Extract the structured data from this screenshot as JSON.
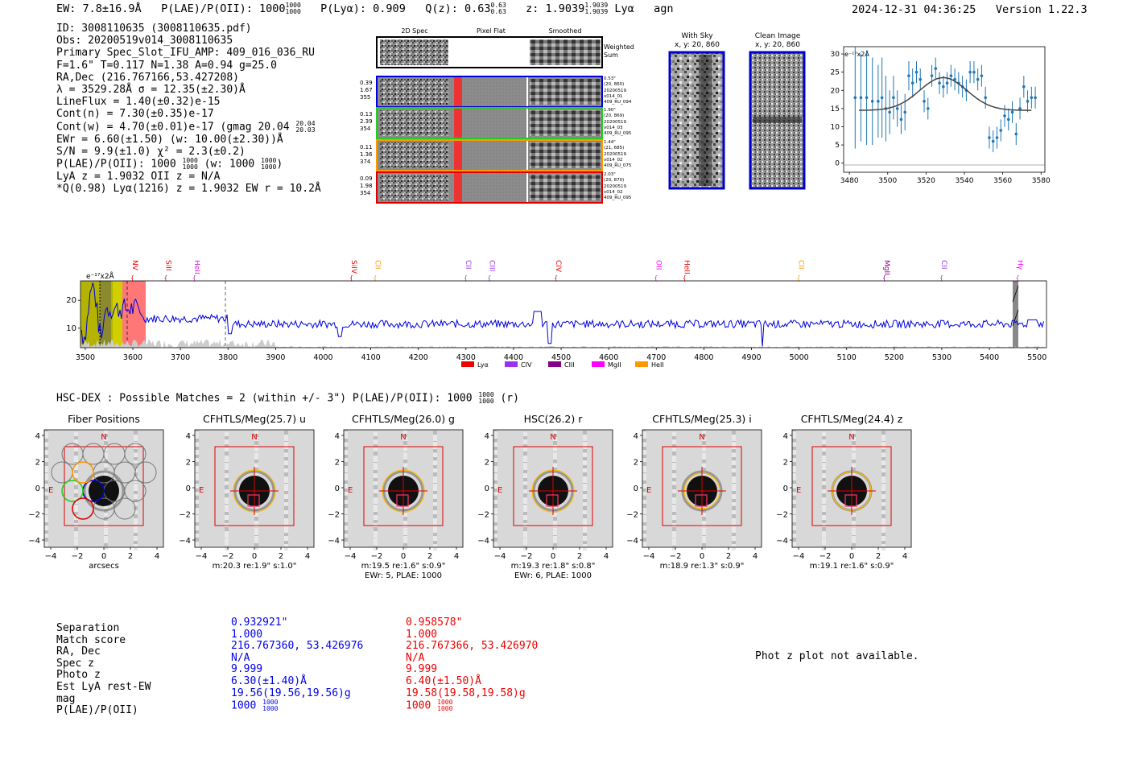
{
  "header": {
    "ew": "EW: 7.8±16.9Å",
    "plae_label": "P(LAE)/P(OII): 1000",
    "plae_hi": "1000",
    "plae_lo": "1000",
    "plya": "P(Lyα): 0.909",
    "qz": "Q(z): 0.63",
    "qz_hi": "0.63",
    "qz_lo": "0.63",
    "z": "z: 1.9039",
    "z_hi": "1.9039",
    "z_lo": "1.9039",
    "line": "Lyα",
    "cls": "agn",
    "timestamp": "2024-12-31 04:36:25",
    "version": "Version 1.22.3"
  },
  "info": {
    "id": "ID: 3008110635 (3008110635.pdf)",
    "obs": "Obs: 20200519v014_3008110635",
    "primary": "Primary Spec_Slot_IFU_AMP: 409_016_036_RU",
    "fparams": "F=1.6\"  T=0.117  N=1.38  A=0.94  g=25.0",
    "radec": "RA,Dec (216.767166,53.427208)",
    "lambda": "λ = 3529.28Å   σ = 12.35(±2.30)Å",
    "lineflux": "LineFlux = 1.40(±0.32)e-15",
    "contn": "Cont(n) = 7.30(±0.35)e-17",
    "contw": "Cont(w) = 4.70(±0.01)e-17 (gmag 20.04",
    "contw_hi": "20.04",
    "contw_lo": "20.03",
    "ewr": "EWr = 6.60(±1.50) (w: 10.00(±2.30))Å",
    "sn": "S/N = 9.9(±1.0)  χ² = 2.3(±0.2)",
    "plae": "P(LAE)/P(OII): 1000",
    "plae_hi": "1000",
    "plae_lo": "1000",
    "plae_w": "(w: 1000",
    "plae_w_hi": "1000",
    "plae_w_lo": "1000",
    "lya_z": "LyA z = 1.9032   OII z = N/A",
    "q_line": "*Q(0.98) Lyα(1216) z = 1.9032   EW r = 10.2Å"
  },
  "cutouts": {
    "col_2d": "2D Spec",
    "col_flat": "Pixel Flat",
    "col_smooth": "Smoothed",
    "weighted": "Weighted",
    "sum": "Sum",
    "rows": [
      {
        "left": [
          "0.39",
          "1.67",
          "355"
        ],
        "right": [
          "0.53\"",
          "(20, 860)",
          "20200519",
          "v014_01",
          "409_RU_094"
        ],
        "color": "#0000dd"
      },
      {
        "left": [
          "0.13",
          "2.39",
          "354"
        ],
        "right": [
          "1.90\"",
          "(20, 869)",
          "20200519",
          "v014_03",
          "409_RU_095"
        ],
        "color": "#22cc22"
      },
      {
        "left": [
          "0.11",
          "1.36",
          "374"
        ],
        "right": [
          "1.44\"",
          "(21, 685)",
          "20200519",
          "v014_02",
          "409_RU_075"
        ],
        "color": "#ff9900"
      },
      {
        "left": [
          "0.09",
          "1.98",
          "354"
        ],
        "right": [
          "2.03\"",
          "(20, 870)",
          "20200519",
          "v014_02",
          "409_RU_095"
        ],
        "color": "#dd0000"
      }
    ]
  },
  "sky": {
    "with_sky": "With Sky",
    "with_sky_xy": "x, y: 20, 860",
    "clean": "Clean Image",
    "clean_xy": "x, y: 20, 860"
  },
  "fit_plot": {
    "unit": "e⁻¹⁷x2Å",
    "xticks": [
      "3480",
      "3500",
      "3520",
      "3540",
      "3560",
      "3580"
    ],
    "yticks": [
      "0",
      "5",
      "10",
      "15",
      "20",
      "25",
      "30"
    ]
  },
  "spectrum": {
    "unit": "e⁻¹⁷x2Å",
    "yticks": [
      "10",
      "20"
    ],
    "xticks": [
      "3500",
      "3600",
      "3700",
      "3800",
      "3900",
      "4000",
      "4100",
      "4200",
      "4300",
      "4400",
      "4500",
      "4600",
      "4700",
      "4800",
      "4900",
      "5000",
      "5100",
      "5200",
      "5300",
      "5400",
      "5500"
    ],
    "lines": [
      {
        "name": "NV",
        "color": "#ee0000"
      },
      {
        "name": "SiII",
        "color": "#ee0000"
      },
      {
        "name": "HeII",
        "color": "#cc22cc"
      },
      {
        "name": "SiIV",
        "color": "#ee0000"
      },
      {
        "name": "CII",
        "color": "#ff9900"
      },
      {
        "name": "CII",
        "color": "#9933ee"
      },
      {
        "name": "CIII",
        "color": "#9933ee"
      },
      {
        "name": "CIV",
        "color": "#ee0000"
      },
      {
        "name": "OII",
        "color": "#ff00ff"
      },
      {
        "name": "HeII",
        "color": "#ee0000"
      },
      {
        "name": "CII",
        "color": "#ff9900"
      },
      {
        "name": "MgII",
        "color": "#880088"
      },
      {
        "name": "CII",
        "color": "#9933ee"
      },
      {
        "name": "Hγ",
        "color": "#ff00ff"
      }
    ],
    "legend": [
      {
        "name": "Lyα",
        "color": "#ee0000"
      },
      {
        "name": "CIV",
        "color": "#9933ee"
      },
      {
        "name": "CIII",
        "color": "#880088"
      },
      {
        "name": "MgII",
        "color": "#ff00ff"
      },
      {
        "name": "HeII",
        "color": "#ff9900"
      }
    ]
  },
  "hsc": {
    "title": "HSC-DEX : Possible Matches = 2 (within +/- 3\")  P(LAE)/P(OII): 1000",
    "plae_hi": "1000",
    "plae_lo": "1000",
    "band": "(r)"
  },
  "stamps": [
    {
      "title": "Fiber Positions",
      "cap1": "arcsecs",
      "cap2": ""
    },
    {
      "title": "CFHTLS/Meg(25.7) u",
      "cap1": "m:20.3  re:1.9\"  s:1.0\"",
      "cap2": ""
    },
    {
      "title": "CFHTLS/Meg(26.0) g",
      "cap1": "m:19.5  re:1.6\"  s:0.9\"",
      "cap2": "EWr: 5, PLAE: 1000"
    },
    {
      "title": "HSC(26.2) r",
      "cap1": "m:19.3  re:1.8\"  s:0.8\"",
      "cap2": "EWr: 6, PLAE: 1000"
    },
    {
      "title": "CFHTLS/Meg(25.3) i",
      "cap1": "m:18.9  re:1.3\"  s:0.9\"",
      "cap2": ""
    },
    {
      "title": "CFHTLS/Meg(24.4) z",
      "cap1": "m:19.1  re:1.6\"  s:0.9\"",
      "cap2": ""
    }
  ],
  "stamp_axes": {
    "ticks": [
      "4",
      "2",
      "0",
      "−2",
      "−4"
    ],
    "xticks": [
      "−4",
      "−2",
      "0",
      "2",
      "4"
    ],
    "north": "N",
    "east": "E"
  },
  "matches": {
    "labels": [
      "Separation",
      "Match score",
      "RA, Dec",
      "Spec z",
      "Photo z",
      "Est LyA rest-EW",
      "mag",
      "P(LAE)/P(OII)"
    ],
    "col1": [
      "0.932921\"",
      "1.000",
      "216.767360, 53.426976",
      "N/A",
      "9.999",
      "6.30(±1.40)Å",
      "19.56(19.56,19.56)g",
      "1000"
    ],
    "col2": [
      "0.958578\"",
      "1.000",
      "216.767366, 53.426970",
      "N/A",
      "9.999",
      "6.40(±1.50)Å",
      "19.58(19.58,19.58)g",
      "1000"
    ],
    "frac_hi": "1000",
    "frac_lo": "1000",
    "photz_note": "Phot z plot not available."
  },
  "colors": {
    "blue": "#0000ee",
    "red": "#ee0000",
    "spectrum": "#0000dd",
    "fit": "#1f77b4"
  }
}
